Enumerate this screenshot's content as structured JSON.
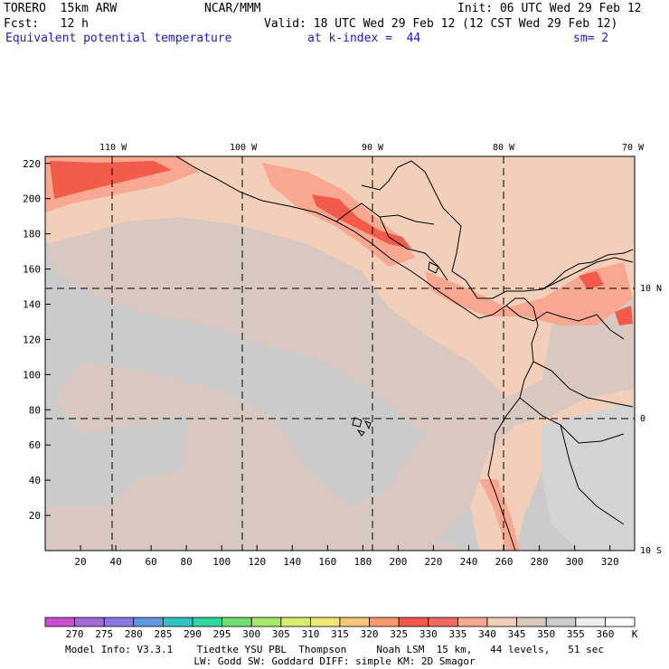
{
  "header": {
    "model": "TORERO  15km ARW",
    "center": "NCAR/MMM",
    "init": "Init: 06 UTC Wed 29 Feb 12",
    "fcst": "Fcst:   12 h",
    "valid": "Valid: 18 UTC Wed 29 Feb 12 (12 CST Wed 29 Feb 12)",
    "field": "Equivalent potential temperature",
    "level": "at k-index =  44",
    "smooth": "sm= 2"
  },
  "map": {
    "lon_labels": [
      "110 W",
      "100 W",
      "90 W",
      "80 W",
      "70 W"
    ],
    "lat_labels": [
      "10 N",
      "0",
      "10 S"
    ],
    "x_ticks": [
      "20",
      "40",
      "60",
      "80",
      "100",
      "120",
      "140",
      "160",
      "180",
      "200",
      "220",
      "240",
      "260",
      "280",
      "300",
      "320"
    ],
    "y_ticks": [
      "20",
      "40",
      "60",
      "80",
      "100",
      "120",
      "140",
      "160",
      "180",
      "200",
      "220"
    ]
  },
  "colorbar": {
    "labels": [
      "270",
      "275",
      "280",
      "285",
      "290",
      "295",
      "300",
      "305",
      "310",
      "315",
      "320",
      "325",
      "330",
      "335",
      "340",
      "345",
      "350",
      "355",
      "360"
    ],
    "unit": "K",
    "colors": [
      "#c84fd0",
      "#a46ad8",
      "#8a78e6",
      "#5f98e0",
      "#2ec4c4",
      "#2fd8a0",
      "#70e070",
      "#a8e86a",
      "#d8ee6a",
      "#f0e870",
      "#f8c878",
      "#f89a6a",
      "#f05a48",
      "#f06a5e",
      "#f8a890",
      "#f2cfb8",
      "#d8c8be",
      "#cccccc",
      "#eeeeee",
      "#ffffff"
    ]
  },
  "footer": {
    "line1": "Model Info: V3.3.1    Tiedtke YSU PBL  Thompson     Noah LSM  15 km,   44 levels,   51 sec",
    "line2": "LW: Godd SW: Goddard DIFF: simple KM: 2D Smagor"
  }
}
